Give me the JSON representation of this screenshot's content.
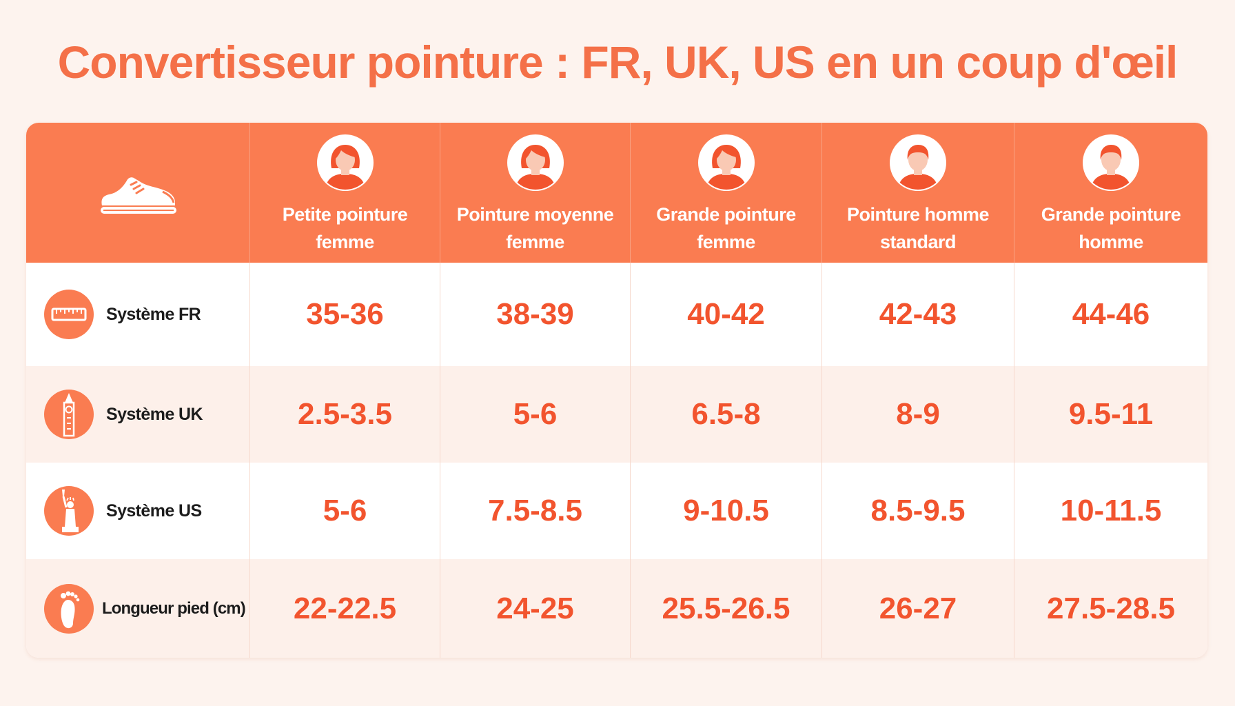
{
  "title": "Convertisseur pointure : FR, UK, US en un coup d'œil",
  "colors": {
    "accent": "#fa7c51",
    "value_text": "#f2542e",
    "title": "#f47048",
    "background": "#fdf3ee"
  },
  "chart_data": {
    "type": "table",
    "columns": [
      {
        "label": "Petite pointure\nfemme",
        "icon": "woman-avatar-icon"
      },
      {
        "label": "Pointure moyenne\nfemme",
        "icon": "woman-avatar-icon"
      },
      {
        "label": "Grande pointure\nfemme",
        "icon": "woman-avatar-icon"
      },
      {
        "label": "Pointure homme\nstandard",
        "icon": "man-avatar-icon"
      },
      {
        "label": "Grande pointure\nhomme",
        "icon": "man-avatar-icon"
      }
    ],
    "rows": [
      {
        "label": "Système FR",
        "icon": "ruler-icon",
        "values": [
          "35-36",
          "38-39",
          "40-42",
          "42-43",
          "44-46"
        ]
      },
      {
        "label": "Système UK",
        "icon": "big-ben-icon",
        "values": [
          "2.5-3.5",
          "5-6",
          "6.5-8",
          "8-9",
          "9.5-11"
        ]
      },
      {
        "label": "Système US",
        "icon": "statue-of-liberty-icon",
        "values": [
          "5-6",
          "7.5-8.5",
          "9-10.5",
          "8.5-9.5",
          "10-11.5"
        ]
      },
      {
        "label": "Longueur pied (cm)",
        "icon": "footprint-icon",
        "values": [
          "22-22.5",
          "24-25",
          "25.5-26.5",
          "26-27",
          "27.5-28.5"
        ]
      }
    ]
  }
}
